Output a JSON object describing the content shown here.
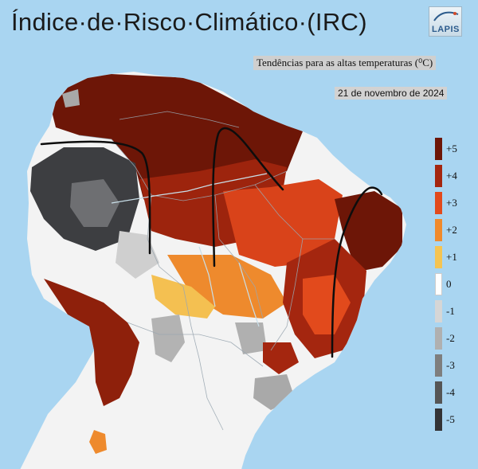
{
  "header": {
    "title": "Índice·de·Risco·Climático·(IRC)",
    "logo_text": "LAPIS",
    "subtitle": "Tendências para as altas temperaturas (⁰C)",
    "date": "21 de novembro de 2024"
  },
  "legend": {
    "entries": [
      {
        "label": "+5",
        "color": "#6d1607"
      },
      {
        "label": "+4",
        "color": "#a4260f"
      },
      {
        "label": "+3",
        "color": "#e24a1c"
      },
      {
        "label": "+2",
        "color": "#f08a2c"
      },
      {
        "label": "+1",
        "color": "#f5c452"
      },
      {
        "label": "0",
        "color": "#ffffff"
      },
      {
        "label": "-1",
        "color": "#d6d6d6"
      },
      {
        "label": "-2",
        "color": "#b0b0b0"
      },
      {
        "label": "-3",
        "color": "#7e7e7e"
      },
      {
        "label": "-4",
        "color": "#555555"
      },
      {
        "label": "-5",
        "color": "#333336"
      }
    ]
  },
  "colors": {
    "ocean": "#a9d5f1",
    "neutral": "#f4f4f4",
    "border_lines": "#9aa7b1",
    "trend_arrows": "#0d0d0d"
  }
}
